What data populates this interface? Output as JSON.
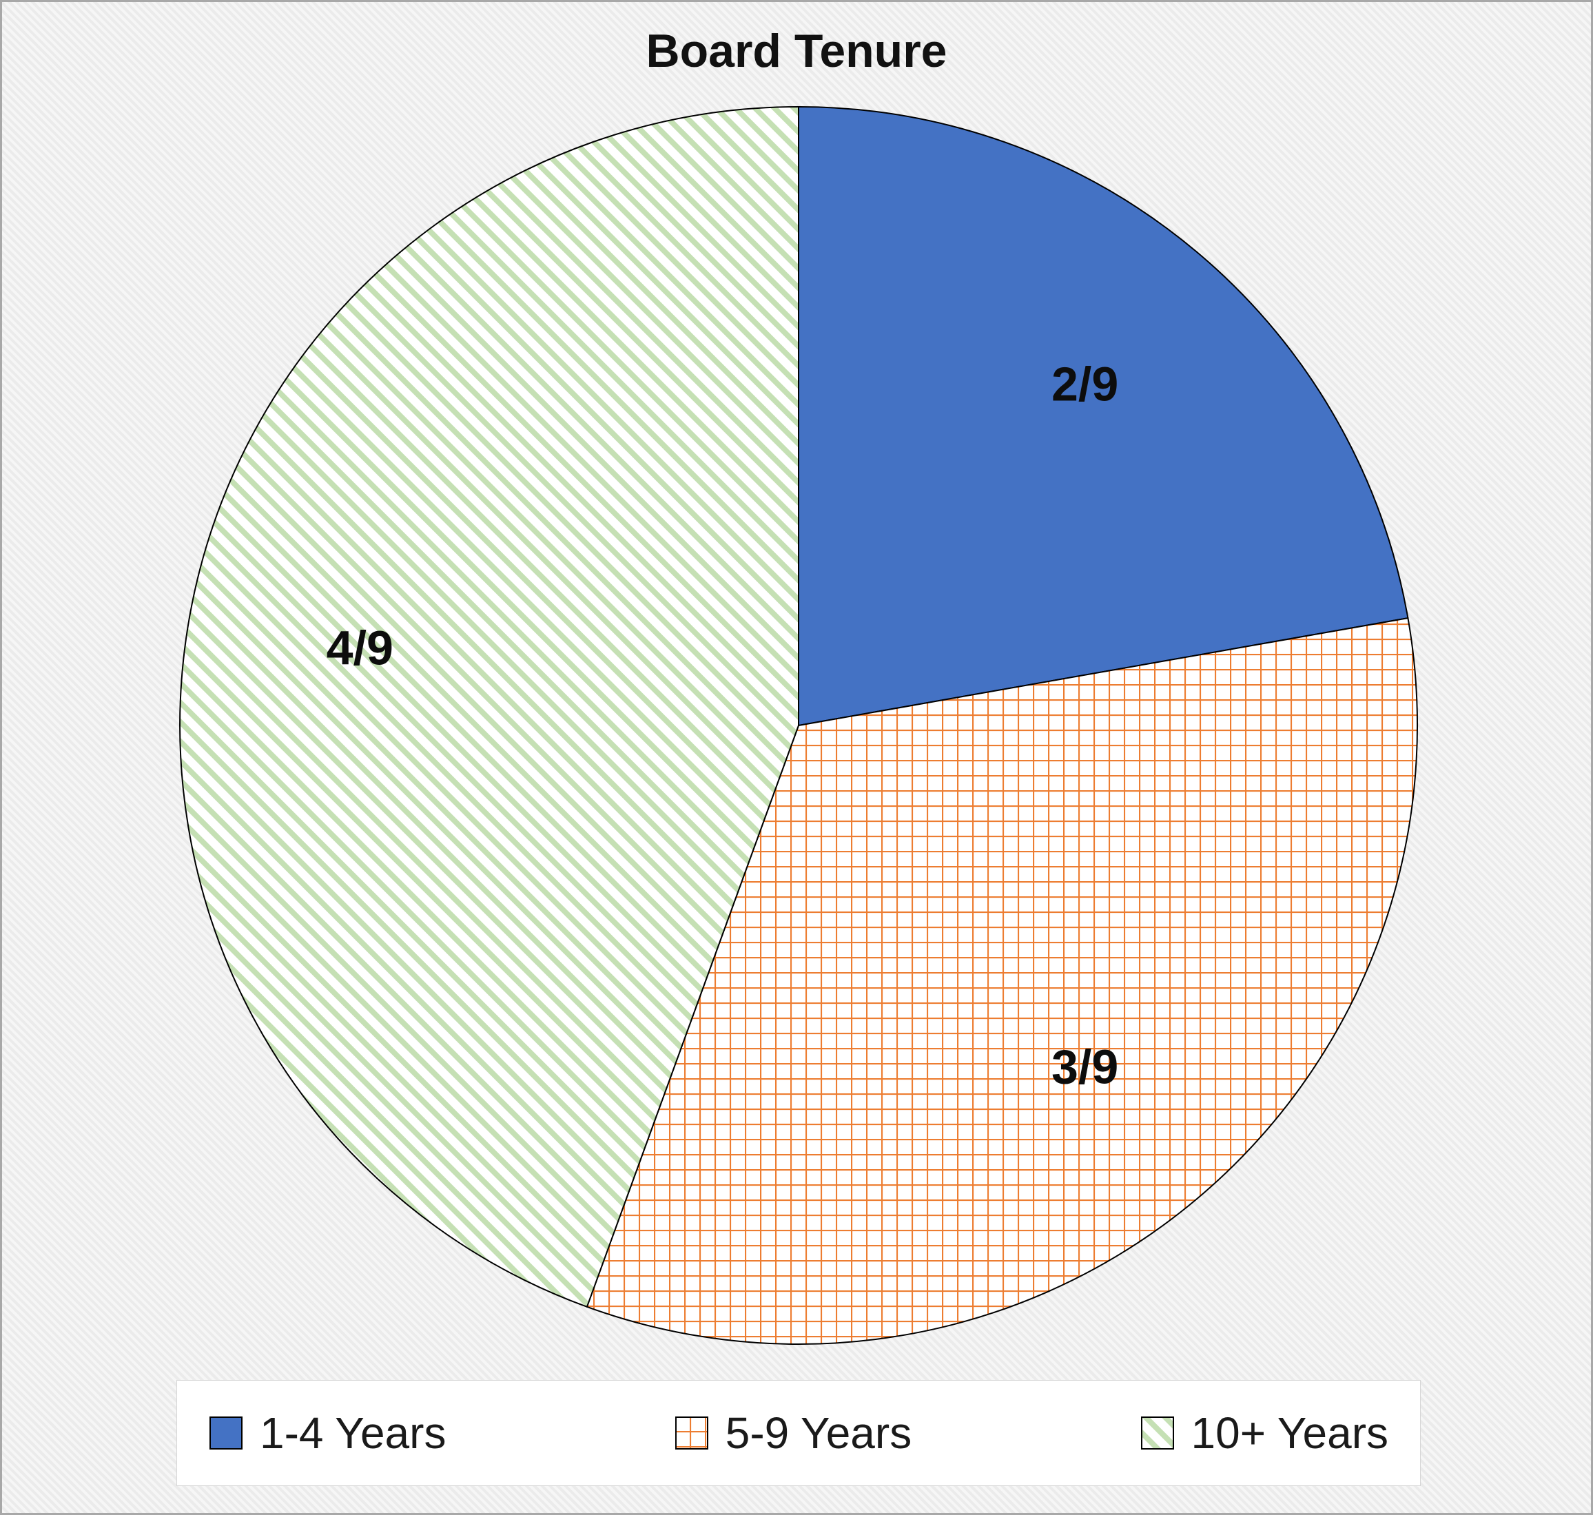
{
  "chart_data": {
    "type": "pie",
    "title": "Board Tenure",
    "total": 9,
    "start_angle_deg": 0,
    "direction": "clockwise",
    "legend_position": "bottom",
    "slices": [
      {
        "label": "1-4 Years",
        "value": 2,
        "data_label": "2/9",
        "fill_style": "solid",
        "color": "#4472C4"
      },
      {
        "label": "5-9 Years",
        "value": 3,
        "data_label": "3/9",
        "fill_style": "crosshatch-pattern",
        "color": "#ED7D31",
        "pattern_background": "#FFFFFF"
      },
      {
        "label": "10+ Years",
        "value": 4,
        "data_label": "4/9",
        "fill_style": "diagonal-stripe-pattern",
        "color": "#C5E0B4",
        "pattern_background": "#FFFFFF"
      }
    ]
  }
}
